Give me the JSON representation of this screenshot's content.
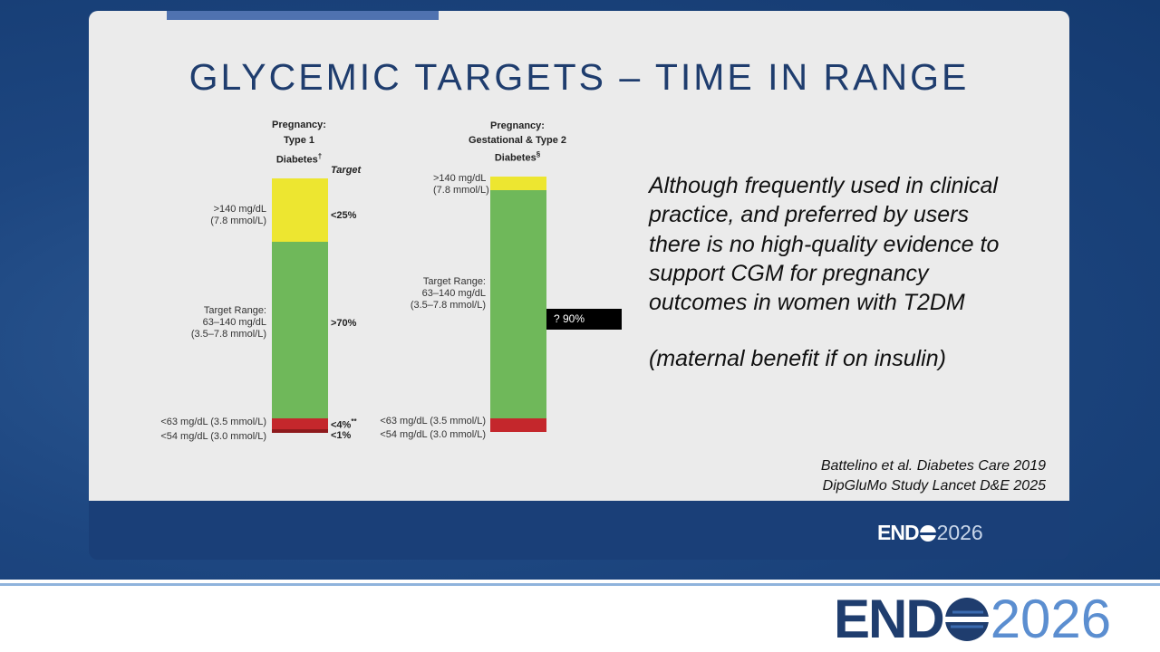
{
  "slide": {
    "title": "GLYCEMIC TARGETS – TIME IN RANGE",
    "panels": [
      {
        "heading": [
          "Pregnancy:",
          "Type 1",
          "Diabetes"
        ],
        "heading_mark": "†",
        "target_header": "Target",
        "high": [
          ">140 mg/dL",
          "(7.8 mmol/L)"
        ],
        "high_target": "<25%",
        "range": [
          "Target Range:",
          "63–140 mg/dL",
          "(3.5–7.8 mmol/L)"
        ],
        "range_target": ">70%",
        "low": "<63 mg/dL (3.5 mmol/L)",
        "low_target": "<4%",
        "low_mark": "**",
        "very_low": "<54 mg/dL (3.0 mmol/L)",
        "very_low_target": "<1%"
      },
      {
        "heading": [
          "Pregnancy:",
          "Gestational & Type 2",
          "Diabetes"
        ],
        "heading_mark": "§",
        "high": [
          ">140 mg/dL",
          "(7.8 mmol/L)"
        ],
        "range": [
          "Target Range:",
          "63–140 mg/dL",
          "(3.5–7.8 mmol/L)"
        ],
        "low": "<63 mg/dL (3.5 mmol/L)",
        "very_low": "<54 mg/dL (3.0 mmol/L)",
        "callout": "? 90%"
      }
    ],
    "body": [
      "Although frequently used in clinical",
      "practice, and preferred by users",
      "there is no high-quality evidence to",
      "support CGM for pregnancy",
      "outcomes in women with T2DM"
    ],
    "note": "(maternal benefit if on insulin)",
    "citations": [
      "Battelino et al. Diabetes Care 2019",
      "DipGluMo Study Lancet D&E 2025"
    ],
    "logo": {
      "word": "END",
      "year": "2026"
    }
  }
}
